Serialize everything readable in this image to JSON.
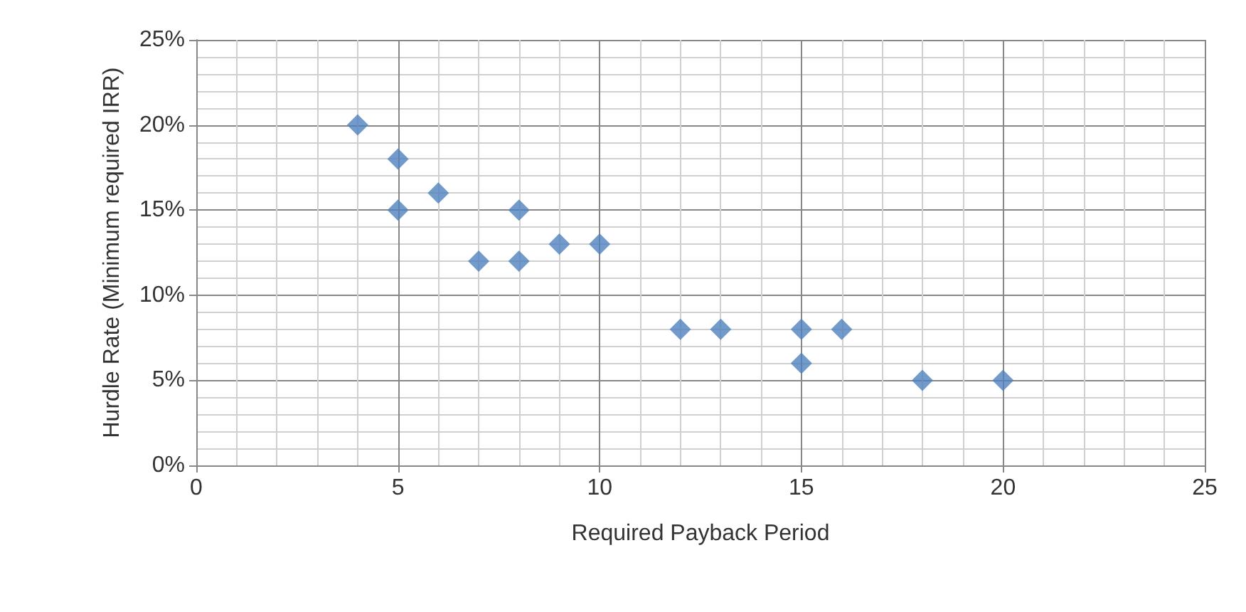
{
  "chart_data": {
    "type": "scatter",
    "xlabel": "Required Payback Period",
    "ylabel": "Hurdle Rate (Minimum required IRR)",
    "x": [
      4,
      5,
      5,
      6,
      7,
      8,
      8,
      9,
      10,
      12,
      13,
      15,
      15,
      16,
      18,
      20
    ],
    "series": [
      {
        "color": "#4f81bd",
        "values": [
          20,
          18,
          15,
          16,
          12,
          15,
          12,
          13,
          13,
          8,
          8,
          8,
          6,
          8,
          5,
          5
        ]
      }
    ],
    "xlim": [
      0,
      25
    ],
    "xticks": [
      0,
      5,
      10,
      15,
      20,
      25
    ],
    "ylim": [
      0,
      25
    ],
    "yticks": [
      {
        "value": 0,
        "label": "0%"
      },
      {
        "value": 5,
        "label": "5%"
      },
      {
        "value": 10,
        "label": "10%"
      },
      {
        "value": 15,
        "label": "15%"
      },
      {
        "value": 20,
        "label": "20%"
      },
      {
        "value": 25,
        "label": "25%"
      }
    ],
    "grid": true,
    "marker": "diamond"
  }
}
